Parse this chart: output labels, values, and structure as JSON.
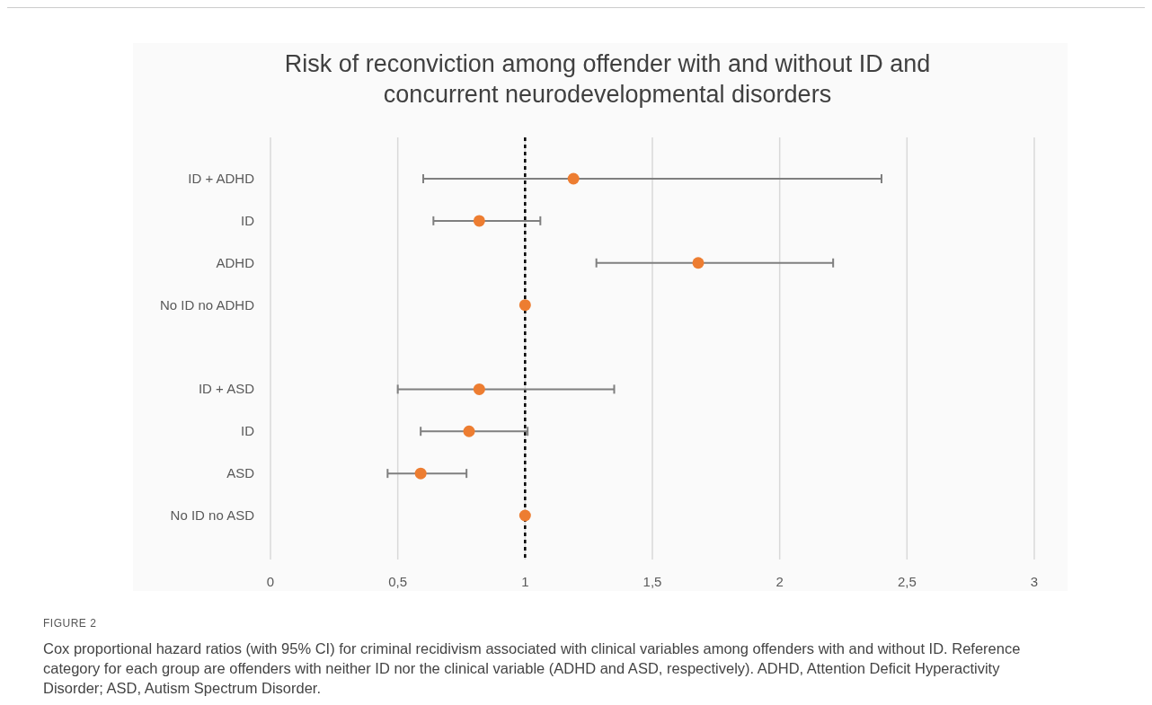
{
  "chart_data": {
    "type": "scatter",
    "orientation": "horizontal",
    "title": "Risk of reconviction among offender with and without ID and concurrent neurodevelopmental disorders",
    "categories": [
      "ID + ADHD",
      "ID",
      "ADHD",
      "No ID no ADHD",
      null,
      "ID + ASD",
      "ID",
      "ASD",
      "No ID no ASD"
    ],
    "values": [
      1.19,
      0.82,
      1.68,
      1.0,
      null,
      0.82,
      0.78,
      0.59,
      1.0
    ],
    "errors": [
      [
        0.6,
        2.4
      ],
      [
        0.64,
        1.06
      ],
      [
        1.28,
        2.21
      ],
      null,
      null,
      [
        0.5,
        1.35
      ],
      [
        0.59,
        1.01
      ],
      [
        0.46,
        0.77
      ],
      null
    ],
    "color": "#ed7d31",
    "marker": "circle",
    "xlim": [
      0,
      3
    ],
    "xticks": [
      0,
      {
        "value": 0.5,
        "label": "0,5"
      },
      1,
      {
        "value": 1.5,
        "label": "1,5"
      },
      2,
      {
        "value": 2.5,
        "label": "2,5"
      },
      3
    ],
    "grid": "x",
    "ref_lines": [
      {
        "axis": "x",
        "value": 1,
        "color": "#000000",
        "line_style": "dashed"
      }
    ],
    "annotations": [
      "FIGURE 2",
      "Cox proportional hazard ratios (with 95% CI) for criminal recidivism associated with clinical variables among offenders with and without ID. Reference category for each group are offenders with neither ID nor the clinical variable (ADHD and ASD, respectively). ADHD, Attention Deficit Hyperactivity Disorder; ASD, Autism Spectrum Disorder."
    ]
  }
}
